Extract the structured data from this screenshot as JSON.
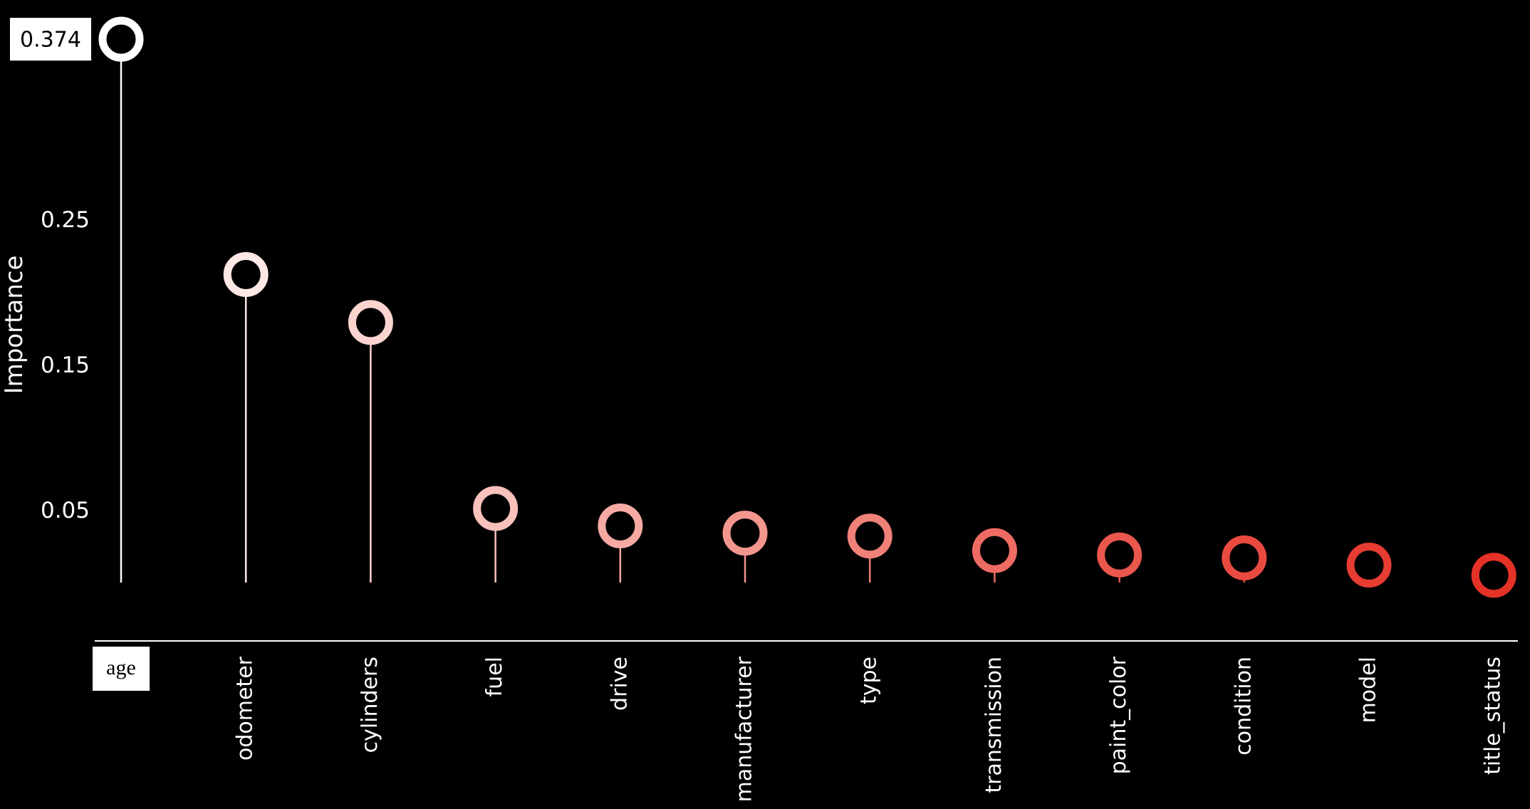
{
  "chart_data": {
    "type": "lollipop",
    "ylabel": "Importance",
    "yticks": [
      0.05,
      0.15,
      0.25
    ],
    "yticks_labels": [
      "0.05",
      "0.15",
      "0.25"
    ],
    "categories": [
      "age",
      "odometer",
      "cylinders",
      "fuel",
      "drive",
      "manufacturer",
      "type",
      "transmission",
      "paint_color",
      "condition",
      "model",
      "title_status"
    ],
    "values": [
      0.374,
      0.212,
      0.179,
      0.051,
      0.039,
      0.034,
      0.032,
      0.022,
      0.019,
      0.017,
      0.012,
      0.005
    ],
    "highlight": {
      "category": "age",
      "value_label": "0.374"
    },
    "colors": [
      "#ffffff",
      "#fde8e6",
      "#fbd3cf",
      "#f9c1bc",
      "#f6aaa3",
      "#f3968e",
      "#f08178",
      "#ed6b62",
      "#ea574d",
      "#e84a40",
      "#e63c32",
      "#e53226"
    ],
    "line_color": "#ffffff",
    "grid": false
  }
}
